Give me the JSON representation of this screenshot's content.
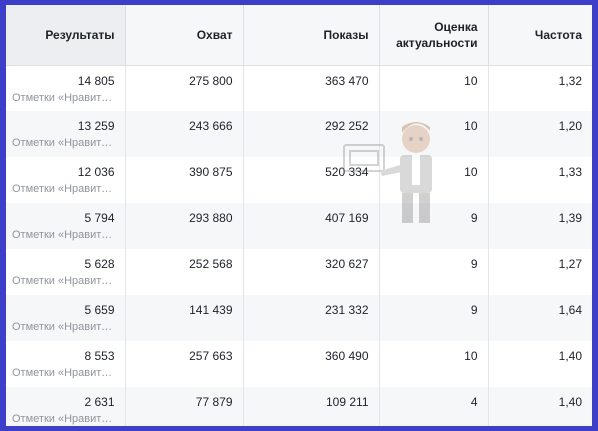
{
  "headers": {
    "results": "Результаты",
    "reach": "Охват",
    "impressions": "Показы",
    "relevance_line1": "Оценка",
    "relevance_line2": "актуальности",
    "frequency": "Частота"
  },
  "rows": [
    {
      "result": "14 805",
      "result_sub": "Отметки «Нравится» ...",
      "reach": "275 800",
      "impressions": "363 470",
      "relevance": "10",
      "frequency": "1,32"
    },
    {
      "result": "13 259",
      "result_sub": "Отметки «Нравится» ...",
      "reach": "243 666",
      "impressions": "292 252",
      "relevance": "10",
      "frequency": "1,20"
    },
    {
      "result": "12 036",
      "result_sub": "Отметки «Нравится» ...",
      "reach": "390 875",
      "impressions": "520 334",
      "relevance": "10",
      "frequency": "1,33"
    },
    {
      "result": "5 794",
      "result_sub": "Отметки «Нравится» ...",
      "reach": "293 880",
      "impressions": "407 169",
      "relevance": "9",
      "frequency": "1,39"
    },
    {
      "result": "5 628",
      "result_sub": "Отметки «Нравится» ...",
      "reach": "252 568",
      "impressions": "320 627",
      "relevance": "9",
      "frequency": "1,27"
    },
    {
      "result": "5 659",
      "result_sub": "Отметки «Нравится» ...",
      "reach": "141 439",
      "impressions": "231 332",
      "relevance": "9",
      "frequency": "1,64"
    },
    {
      "result": "8 553",
      "result_sub": "Отметки «Нравится» ...",
      "reach": "257 663",
      "impressions": "360 490",
      "relevance": "10",
      "frequency": "1,40"
    },
    {
      "result": "2 631",
      "result_sub": "Отметки «Нравится» ...",
      "reach": "77 879",
      "impressions": "109 211",
      "relevance": "4",
      "frequency": "1,40"
    }
  ],
  "colors": {
    "frame": "#3d3fc9",
    "header_bg": "#f6f7f9",
    "stripe_bg": "#f6f7f9",
    "text": "#1d2129",
    "subtext": "#90949c"
  },
  "watermark_icon": "presenter-mascot-icon"
}
